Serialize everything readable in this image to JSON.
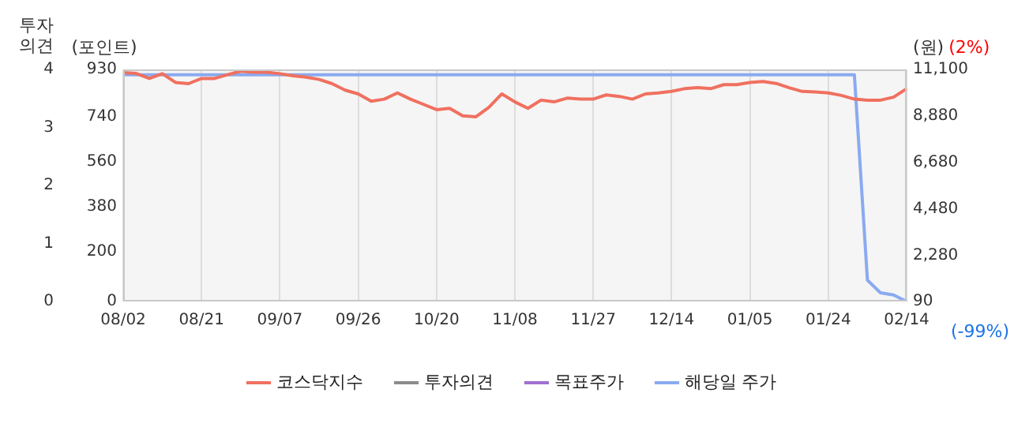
{
  "chart_data": {
    "type": "line",
    "ylabel": "투자의견",
    "y2label": "(포인트)",
    "y3label": "(원)",
    "annotations": [
      "(2%)",
      "(-99%)"
    ],
    "categories": [
      "08/02",
      null,
      null,
      null,
      null,
      null,
      "08/21",
      null,
      null,
      null,
      null,
      null,
      "09/07",
      null,
      null,
      null,
      null,
      null,
      "09/26",
      null,
      null,
      null,
      null,
      null,
      "10/20",
      null,
      null,
      null,
      null,
      null,
      "11/08",
      null,
      null,
      null,
      null,
      null,
      "11/27",
      null,
      null,
      null,
      null,
      null,
      "12/14",
      null,
      null,
      null,
      null,
      null,
      "01/05",
      null,
      null,
      null,
      null,
      null,
      "01/24",
      null,
      null,
      null,
      null,
      null,
      "02/14"
    ],
    "series": [
      {
        "name": "코스닥지수",
        "color": "#f0705f",
        "axis": "y2",
        "values": [
          917,
          914,
          894,
          913,
          878,
          873,
          894,
          894,
          909,
          923,
          919,
          919,
          913,
          905,
          899,
          890,
          873,
          847,
          832,
          803,
          811,
          836,
          811,
          790,
          769,
          774,
          744,
          740,
          778,
          832,
          800,
          774,
          807,
          800,
          815,
          811,
          811,
          828,
          822,
          811,
          832,
          836,
          842,
          853,
          857,
          853,
          869,
          869,
          878,
          882,
          874,
          857,
          842,
          840,
          836,
          826,
          811,
          807,
          807,
          819,
          853
        ]
      },
      {
        "name": "투자의견",
        "color": "#8c8c8c",
        "values": [
          null,
          null,
          null,
          null,
          null,
          null,
          null,
          null,
          null,
          null,
          null,
          null,
          null,
          null,
          null,
          null,
          null,
          null,
          null,
          null,
          null,
          null,
          null,
          null,
          null,
          null,
          null,
          null,
          null,
          null,
          null,
          null,
          null,
          null,
          null,
          null,
          null,
          null,
          null,
          null,
          null,
          null,
          null,
          null,
          null,
          null,
          null,
          null,
          null,
          null,
          null,
          null,
          null,
          null,
          null,
          null,
          null,
          null,
          null,
          null,
          null
        ]
      },
      {
        "name": "목표주가",
        "color": "#a070d0",
        "axis": "y3",
        "values": [
          null,
          null,
          null,
          null,
          null,
          null,
          null,
          null,
          null,
          null,
          null,
          null,
          null,
          null,
          null,
          null,
          null,
          null,
          null,
          null,
          null,
          null,
          null,
          null,
          null,
          null,
          null,
          null,
          null,
          null,
          null,
          null,
          null,
          null,
          null,
          null,
          null,
          null,
          null,
          null,
          null,
          null,
          null,
          null,
          null,
          null,
          null,
          null,
          null,
          null,
          null,
          null,
          null,
          null,
          null,
          null,
          null,
          null,
          null,
          null,
          null
        ]
      },
      {
        "name": "해당일 주가",
        "color": "#8aaaf0",
        "axis": "y3",
        "values": [
          10850,
          10850,
          10850,
          10850,
          10850,
          10850,
          10850,
          10850,
          10850,
          10850,
          10850,
          10850,
          10850,
          10850,
          10850,
          10850,
          10850,
          10850,
          10850,
          10850,
          10850,
          10850,
          10850,
          10850,
          10850,
          10850,
          10850,
          10850,
          10850,
          10850,
          10850,
          10850,
          10850,
          10850,
          10850,
          10850,
          10850,
          10850,
          10850,
          10850,
          10850,
          10850,
          10850,
          10850,
          10850,
          10850,
          10850,
          10850,
          10850,
          10850,
          10850,
          10850,
          10850,
          10850,
          10850,
          10850,
          10850,
          1100,
          500,
          400,
          90
        ]
      }
    ],
    "ylim": [
      0,
      4
    ],
    "yticks": [
      0,
      1,
      2,
      3,
      4
    ],
    "y2lim": [
      0,
      930
    ],
    "y2ticks": [
      0,
      200,
      380,
      560,
      740,
      930
    ],
    "y3lim": [
      90,
      11100
    ],
    "y3ticks": [
      90,
      {
        "value": 2280,
        "label": "2,280"
      },
      {
        "value": 4480,
        "label": "4,480"
      },
      {
        "value": 6680,
        "label": "6,680"
      },
      {
        "value": 8880,
        "label": "8,880"
      },
      {
        "value": 11100,
        "label": "11,100"
      }
    ],
    "grid": "x",
    "legend": "bottom",
    "marker": "none",
    "line_style": "solid"
  }
}
